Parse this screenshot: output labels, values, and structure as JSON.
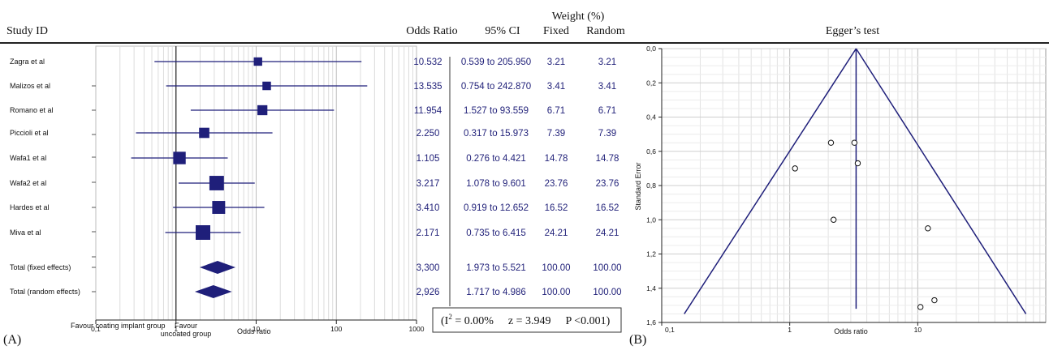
{
  "panel_a_label": "(A)",
  "panel_b_label": "(B)",
  "forest": {
    "headers": {
      "study_id": "Study ID",
      "odds_ratio": "Odds Ratio",
      "ci": "95% CI",
      "weight": "Weight (%)",
      "fixed": "Fixed",
      "random": "Random"
    },
    "x_ticks": [
      "0,1",
      "1",
      "10",
      "100",
      "1000"
    ],
    "xlabel": "Odds ratio",
    "favour_left": "Favour coating implant group",
    "favour_right_1": "Favour",
    "favour_right_2": "uncoated group",
    "heterogeneity": {
      "i2_prefix": "(I",
      "i2_sup": "2",
      "i2_suffix": " = 0.00%",
      "z": "z = 3.949",
      "p": "P <0.001)"
    },
    "colors": {
      "marker": "#1f1f7a",
      "text": "#22227a"
    }
  },
  "egger": {
    "title": "Egger’s test",
    "ylabel": "Standard Error",
    "xlabel": "Odds ratio",
    "y_ticks": [
      "0,0",
      "0,2",
      "0,4",
      "0,6",
      "0,8",
      "1,0",
      "1,2",
      "1,4",
      "1,6"
    ],
    "x_ticks": [
      "0,1",
      "1",
      "10"
    ]
  },
  "chart_data": [
    {
      "type": "forest",
      "xscale": "log",
      "xlim": [
        0.1,
        1000
      ],
      "xlabel": "Odds ratio",
      "studies": [
        {
          "name": "Zagra et al",
          "or": 10.532,
          "lo": 0.539,
          "hi": 205.95,
          "or_text": "10.532",
          "ci_text": "0.539 to 205.950",
          "fixed": "3.21",
          "random": "3.21",
          "weight": 3.21
        },
        {
          "name": "Malizos et al",
          "or": 13.535,
          "lo": 0.754,
          "hi": 242.87,
          "or_text": "13.535",
          "ci_text": "0.754 to 242.870",
          "fixed": "3.41",
          "random": "3.41",
          "weight": 3.41
        },
        {
          "name": "Romano et al",
          "or": 11.954,
          "lo": 1.527,
          "hi": 93.559,
          "or_text": "11.954",
          "ci_text": "1.527 to 93.559",
          "fixed": "6.71",
          "random": "6.71",
          "weight": 6.71
        },
        {
          "name": "Piccioli et al",
          "or": 2.25,
          "lo": 0.317,
          "hi": 15.973,
          "or_text": "2.250",
          "ci_text": "0.317 to 15.973",
          "fixed": "7.39",
          "random": "7.39",
          "weight": 7.39
        },
        {
          "name": "Wafa1 et al",
          "or": 1.105,
          "lo": 0.276,
          "hi": 4.421,
          "or_text": "1.105",
          "ci_text": "0.276 to 4.421",
          "fixed": "14.78",
          "random": "14.78",
          "weight": 14.78
        },
        {
          "name": "Wafa2 et al",
          "or": 3.217,
          "lo": 1.078,
          "hi": 9.601,
          "or_text": "3.217",
          "ci_text": "1.078 to 9.601",
          "fixed": "23.76",
          "random": "23.76",
          "weight": 23.76
        },
        {
          "name": "Hardes et al",
          "or": 3.41,
          "lo": 0.919,
          "hi": 12.652,
          "or_text": "3.410",
          "ci_text": "0.919 to 12.652",
          "fixed": "16.52",
          "random": "16.52",
          "weight": 16.52
        },
        {
          "name": "Miva et al",
          "or": 2.171,
          "lo": 0.735,
          "hi": 6.415,
          "or_text": "2.171",
          "ci_text": "0.735 to 6.415",
          "fixed": "24.21",
          "random": "24.21",
          "weight": 24.21
        }
      ],
      "totals": [
        {
          "name": "Total (fixed effects)",
          "or": 3.3,
          "lo": 1.973,
          "hi": 5.521,
          "or_text": "3,300",
          "ci_text": "1.973 to 5.521",
          "fixed": "100.00",
          "random": "100.00"
        },
        {
          "name": "Total (random effects)",
          "or": 2.926,
          "lo": 1.717,
          "hi": 4.986,
          "or_text": "2,926",
          "ci_text": "1.717 to 4.986",
          "fixed": "100.00",
          "random": "100.00"
        }
      ]
    },
    {
      "type": "scatter",
      "title": "Egger’s test",
      "xscale": "log",
      "xlim": [
        0.1,
        100
      ],
      "ylim": [
        0,
        1.6
      ],
      "y_inverted": true,
      "xlabel": "Odds ratio",
      "ylabel": "Standard Error",
      "points": [
        {
          "x": 2.1,
          "y": 0.55
        },
        {
          "x": 3.2,
          "y": 0.55
        },
        {
          "x": 3.4,
          "y": 0.67
        },
        {
          "x": 1.1,
          "y": 0.7
        },
        {
          "x": 2.2,
          "y": 1.0
        },
        {
          "x": 12.0,
          "y": 1.05
        },
        {
          "x": 13.5,
          "y": 1.47
        },
        {
          "x": 10.5,
          "y": 1.51
        }
      ],
      "center_line_x": 3.3,
      "funnel_apex": {
        "x": 3.3,
        "y": 0.0
      },
      "funnel_base": [
        {
          "x": 0.15,
          "y": 1.55
        },
        {
          "x": 70,
          "y": 1.55
        }
      ]
    }
  ]
}
